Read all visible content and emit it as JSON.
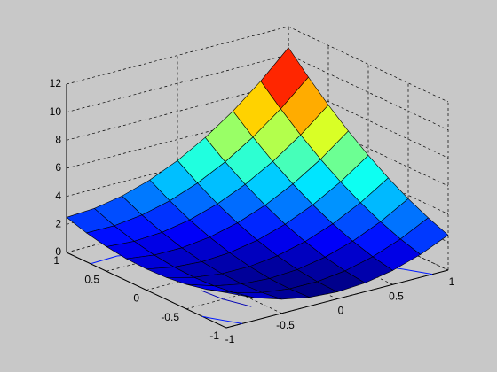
{
  "chart_data": {
    "type": "surface",
    "x": [
      -1,
      -0.75,
      -0.5,
      -0.25,
      0,
      0.25,
      0.5,
      0.75,
      1
    ],
    "y": [
      -1,
      -0.75,
      -0.5,
      -0.25,
      0,
      0.25,
      0.5,
      0.75,
      1
    ],
    "z": [
      [
        2.5,
        1.625,
        1,
        0.625,
        0.5,
        0.625,
        1,
        1.625,
        2.5
      ],
      [
        2.0625,
        1.3125,
        0.8125,
        0.5625,
        0.5625,
        0.8125,
        1.3125,
        2.0625,
        3.0625
      ],
      [
        1.75,
        1.125,
        0.75,
        0.625,
        0.75,
        1.125,
        1.75,
        2.625,
        3.75
      ],
      [
        1.5625,
        1.0625,
        0.8125,
        0.8125,
        1.0625,
        1.5625,
        2.3125,
        3.3125,
        4.5625
      ],
      [
        1.5,
        1.125,
        1,
        1.125,
        1.5,
        2.125,
        3,
        4.125,
        5.5
      ],
      [
        1.5625,
        1.3125,
        1.3125,
        1.5625,
        2.0625,
        2.8125,
        3.8125,
        5.0625,
        6.5625
      ],
      [
        1.75,
        1.625,
        1.75,
        2.125,
        2.75,
        3.625,
        4.75,
        6.125,
        7.75
      ],
      [
        2.0625,
        2.0625,
        2.3125,
        2.8125,
        3.5625,
        4.5625,
        5.8125,
        7.3125,
        9.0625
      ],
      [
        2.5,
        2.625,
        3,
        3.625,
        4.5,
        5.625,
        7,
        8.625,
        10.5
      ]
    ],
    "colormap": "jet",
    "contour_levels": [
      1,
      2,
      4,
      6,
      8,
      10
    ],
    "xlim": [
      -1,
      1
    ],
    "ylim": [
      -1,
      1
    ],
    "zlim": [
      0,
      12
    ],
    "xticks": [
      -1,
      -0.5,
      0,
      0.5,
      1
    ],
    "yticks": [
      -1,
      -0.5,
      0,
      0.5,
      1
    ],
    "zticks": [
      0,
      2,
      4,
      6,
      8,
      10,
      12
    ],
    "grid": true
  }
}
